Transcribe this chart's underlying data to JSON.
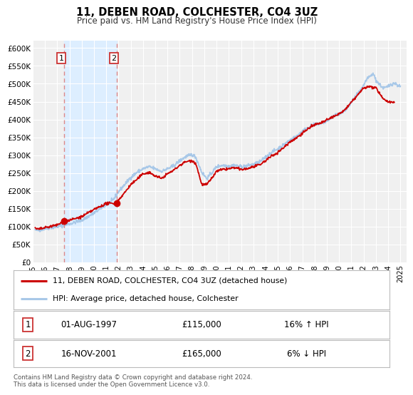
{
  "title": "11, DEBEN ROAD, COLCHESTER, CO4 3UZ",
  "subtitle": "Price paid vs. HM Land Registry's House Price Index (HPI)",
  "ylim": [
    0,
    620000
  ],
  "yticks": [
    0,
    50000,
    100000,
    150000,
    200000,
    250000,
    300000,
    350000,
    400000,
    450000,
    500000,
    550000,
    600000
  ],
  "ytick_labels": [
    "£0",
    "£50K",
    "£100K",
    "£150K",
    "£200K",
    "£250K",
    "£300K",
    "£350K",
    "£400K",
    "£450K",
    "£500K",
    "£550K",
    "£600K"
  ],
  "xlim_start": 1995.2,
  "xlim_end": 2025.5,
  "xticks": [
    1995,
    1996,
    1997,
    1998,
    1999,
    2000,
    2001,
    2002,
    2003,
    2004,
    2005,
    2006,
    2007,
    2008,
    2009,
    2010,
    2011,
    2012,
    2013,
    2014,
    2015,
    2016,
    2017,
    2018,
    2019,
    2020,
    2021,
    2022,
    2023,
    2024,
    2025
  ],
  "sale1_x": 1997.583,
  "sale1_y": 115000,
  "sale1_label": "1",
  "sale1_date": "01-AUG-1997",
  "sale1_price": "£115,000",
  "sale1_hpi": "16% ↑ HPI",
  "sale2_x": 2001.878,
  "sale2_y": 165000,
  "sale2_label": "2",
  "sale2_date": "16-NOV-2001",
  "sale2_price": "£165,000",
  "sale2_hpi": "6% ↓ HPI",
  "hpi_color": "#a8c8e8",
  "sale_color": "#cc0000",
  "vline_color": "#dd8888",
  "shade_color": "#ddeeff",
  "legend_label1": "11, DEBEN ROAD, COLCHESTER, CO4 3UZ (detached house)",
  "legend_label2": "HPI: Average price, detached house, Colchester",
  "footer1": "Contains HM Land Registry data © Crown copyright and database right 2024.",
  "footer2": "This data is licensed under the Open Government Licence v3.0.",
  "bg_color": "#ffffff",
  "plot_bg_color": "#f0f0f0"
}
